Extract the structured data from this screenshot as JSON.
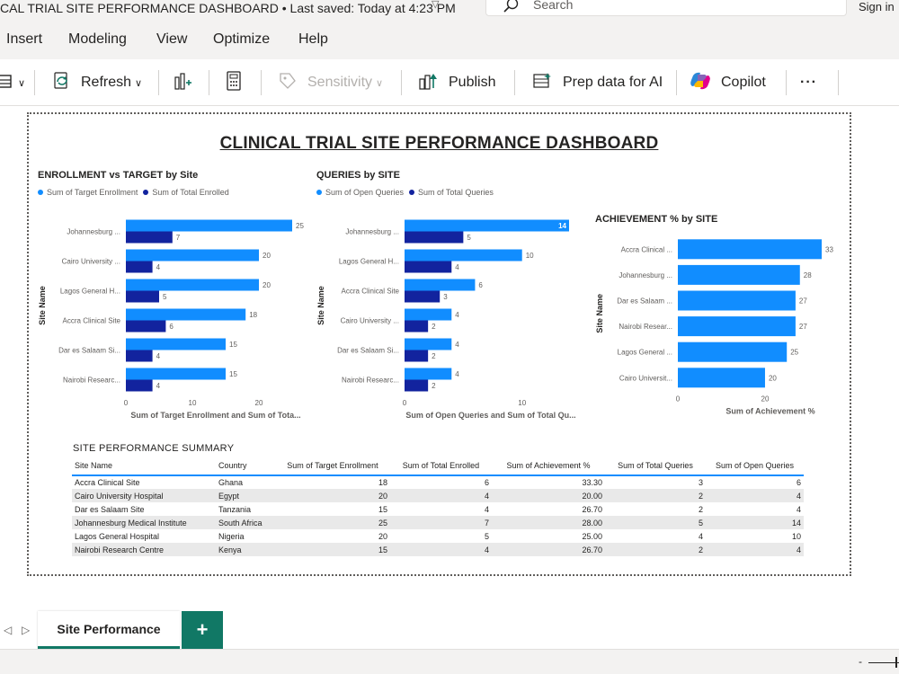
{
  "titlebar": {
    "doc_title": "CAL TRIAL SITE PERFORMANCE DASHBOARD • Last saved: Today at 4:23 PM",
    "search_placeholder": "Search",
    "signin": "Sign in"
  },
  "menu": {
    "items": [
      "Insert",
      "Modeling",
      "View",
      "Optimize",
      "Help"
    ]
  },
  "ribbon": {
    "refresh": "Refresh",
    "sensitivity": "Sensitivity",
    "publish": "Publish",
    "prep_data": "Prep data for AI",
    "copilot": "Copilot",
    "more": "···"
  },
  "colors": {
    "light_series": "#118dff",
    "dark_series": "#12239e",
    "accent_green": "#117865"
  },
  "dashboard": {
    "title": "CLINICAL TRIAL SITE PERFORMANCE DASHBOARD"
  },
  "chart_data": [
    {
      "id": "enrollment",
      "type": "bar",
      "orientation": "horizontal",
      "title": "ENROLLMENT vs TARGET by Site",
      "categories": [
        "Johannesburg ...",
        "Cairo University ...",
        "Lagos General H...",
        "Accra Clinical Site",
        "Dar es Salaam Si...",
        "Nairobi Researc..."
      ],
      "series": [
        {
          "name": "Sum of Target Enrollment",
          "values": [
            25,
            20,
            20,
            18,
            15,
            15
          ]
        },
        {
          "name": "Sum of Total Enrolled",
          "values": [
            7,
            4,
            5,
            6,
            4,
            4
          ]
        }
      ],
      "xticks": [
        0,
        10,
        20
      ],
      "xlim": [
        0,
        25
      ],
      "xlabel": "Sum of Target Enrollment and Sum of Tota...",
      "ylabel": "Site Name"
    },
    {
      "id": "queries",
      "type": "bar",
      "orientation": "horizontal",
      "title": "QUERIES by SITE",
      "categories": [
        "Johannesburg ...",
        "Lagos General H...",
        "Accra Clinical Site",
        "Cairo University ...",
        "Dar es Salaam Si...",
        "Nairobi Researc..."
      ],
      "series": [
        {
          "name": "Sum of Open Queries",
          "values": [
            14,
            10,
            6,
            4,
            4,
            4
          ]
        },
        {
          "name": "Sum of Total Queries",
          "values": [
            5,
            4,
            3,
            2,
            2,
            2
          ]
        }
      ],
      "xticks": [
        0,
        10
      ],
      "xlim": [
        0,
        14
      ],
      "xlabel": "Sum of Open Queries and Sum of Total Qu...",
      "ylabel": "Site Name"
    },
    {
      "id": "achievement",
      "type": "bar",
      "orientation": "horizontal",
      "title": "ACHIEVEMENT % by SITE",
      "categories": [
        "Accra Clinical ...",
        "Johannesburg ...",
        "Dar es Salaam ...",
        "Nairobi Resear...",
        "Lagos General ...",
        "Cairo Universit..."
      ],
      "series": [
        {
          "values": [
            33,
            28,
            27,
            27,
            25,
            20
          ]
        }
      ],
      "xticks": [
        0,
        20
      ],
      "xlim": [
        0,
        33
      ],
      "xlabel": "Sum of Achievement %",
      "ylabel": "Site Name"
    }
  ],
  "table": {
    "title": "SITE PERFORMANCE SUMMARY",
    "columns": [
      "Site Name",
      "Country",
      "Sum of Target Enrollment",
      "Sum of Total Enrolled",
      "Sum of Achievement %",
      "Sum of Total Queries",
      "Sum of Open Queries"
    ],
    "rows": [
      [
        "Accra Clinical Site",
        "Ghana",
        "18",
        "6",
        "33.30",
        "3",
        "6"
      ],
      [
        "Cairo University Hospital",
        "Egypt",
        "20",
        "4",
        "20.00",
        "2",
        "4"
      ],
      [
        "Dar es Salaam Site",
        "Tanzania",
        "15",
        "4",
        "26.70",
        "2",
        "4"
      ],
      [
        "Johannesburg Medical Institute",
        "South Africa",
        "25",
        "7",
        "28.00",
        "5",
        "14"
      ],
      [
        "Lagos General Hospital",
        "Nigeria",
        "20",
        "5",
        "25.00",
        "4",
        "10"
      ],
      [
        "Nairobi Research Centre",
        "Kenya",
        "15",
        "4",
        "26.70",
        "2",
        "4"
      ]
    ]
  },
  "pages": {
    "active_tab": "Site Performance",
    "add_label": "+"
  },
  "status": {
    "zoom_minus": "-"
  }
}
